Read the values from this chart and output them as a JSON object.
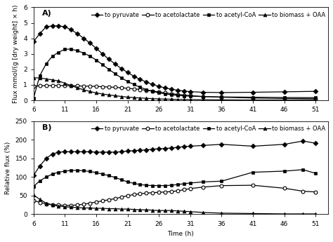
{
  "time_A": [
    6,
    7,
    8,
    9,
    10,
    11,
    12,
    13,
    14,
    15,
    16,
    17,
    18,
    19,
    20,
    21,
    22,
    23,
    24,
    25,
    26,
    27,
    28,
    29,
    30,
    31,
    33,
    36,
    41,
    46,
    51
  ],
  "pyruvate_A": [
    3.8,
    4.3,
    4.75,
    4.8,
    4.8,
    4.75,
    4.55,
    4.3,
    4.0,
    3.7,
    3.35,
    3.0,
    2.65,
    2.35,
    2.05,
    1.8,
    1.55,
    1.35,
    1.18,
    1.02,
    0.9,
    0.8,
    0.72,
    0.65,
    0.6,
    0.56,
    0.52,
    0.5,
    0.52,
    0.55,
    0.58
  ],
  "acetolactate_A": [
    0.92,
    0.93,
    0.95,
    0.96,
    0.96,
    0.95,
    0.94,
    0.93,
    0.92,
    0.91,
    0.9,
    0.88,
    0.86,
    0.84,
    0.81,
    0.78,
    0.74,
    0.7,
    0.65,
    0.6,
    0.54,
    0.48,
    0.43,
    0.38,
    0.34,
    0.3,
    0.25,
    0.2,
    0.15,
    0.12,
    0.1
  ],
  "acetylCoA_A": [
    0.15,
    1.6,
    2.35,
    2.85,
    3.1,
    3.3,
    3.3,
    3.2,
    3.05,
    2.85,
    2.6,
    2.3,
    2.0,
    1.72,
    1.45,
    1.22,
    1.02,
    0.84,
    0.7,
    0.58,
    0.48,
    0.41,
    0.36,
    0.32,
    0.29,
    0.27,
    0.24,
    0.22,
    0.2,
    0.18,
    0.17
  ],
  "biomassOAA_A": [
    1.45,
    1.45,
    1.38,
    1.32,
    1.25,
    1.1,
    0.95,
    0.8,
    0.68,
    0.57,
    0.48,
    0.41,
    0.35,
    0.3,
    0.25,
    0.21,
    0.18,
    0.15,
    0.13,
    0.11,
    0.09,
    0.08,
    0.07,
    0.06,
    0.05,
    0.05,
    0.04,
    0.03,
    0.02,
    0.02,
    0.02
  ],
  "time_B": [
    6,
    7,
    8,
    9,
    10,
    11,
    12,
    13,
    14,
    15,
    16,
    17,
    18,
    19,
    20,
    21,
    22,
    23,
    24,
    25,
    26,
    27,
    28,
    29,
    30,
    31,
    33,
    36,
    41,
    46,
    49,
    51
  ],
  "pyruvate_B": [
    105,
    130,
    150,
    162,
    167,
    168,
    168,
    168,
    168,
    168,
    167,
    167,
    167,
    167,
    168,
    170,
    171,
    172,
    173,
    175,
    176,
    177,
    178,
    180,
    182,
    183,
    185,
    188,
    183,
    188,
    197,
    191
  ],
  "acetolactate_B": [
    37,
    32,
    28,
    26,
    25,
    24,
    24,
    25,
    27,
    30,
    33,
    36,
    39,
    42,
    46,
    50,
    53,
    55,
    57,
    58,
    59,
    60,
    61,
    63,
    66,
    69,
    73,
    77,
    78,
    70,
    62,
    60
  ],
  "acetylCoA_B": [
    75,
    90,
    100,
    108,
    113,
    116,
    118,
    118,
    117,
    115,
    112,
    108,
    104,
    99,
    93,
    87,
    83,
    80,
    78,
    77,
    77,
    77,
    78,
    80,
    82,
    84,
    87,
    89,
    113,
    116,
    120,
    110
  ],
  "biomassOAA_B": [
    52,
    40,
    30,
    25,
    22,
    20,
    19,
    18,
    17,
    17,
    16,
    16,
    15,
    15,
    14,
    14,
    13,
    12,
    12,
    11,
    10,
    10,
    10,
    9,
    8,
    7,
    5,
    3,
    2,
    1,
    1,
    1
  ],
  "ylabel_A": "Flux mmol/(g [dry weight] × h)",
  "ylabel_B": "Relative flux (%)",
  "xlabel": "Time (h)",
  "ylim_A": [
    0,
    6
  ],
  "ylim_B": [
    0,
    250
  ],
  "yticks_A": [
    0,
    1,
    2,
    3,
    4,
    5,
    6
  ],
  "yticks_B": [
    0,
    50,
    100,
    150,
    200,
    250
  ],
  "xticks": [
    6,
    11,
    16,
    21,
    26,
    31,
    36,
    41,
    46,
    51
  ],
  "label_pyruvate": "to pyruvate",
  "label_acetolactate": "to acetolactate",
  "label_acetylCoA": "to acetyl-CoA",
  "label_biomassOAA": "to biomass + OAA",
  "label_A": "A)",
  "label_B": "B)",
  "marker_pyruvate": "D",
  "marker_acetolactate": "o",
  "marker_acetylCoA": "s",
  "marker_biomassOAA": "^",
  "color": "black",
  "markersize": 3.5,
  "linewidth": 0.9,
  "fontsize_label": 6.5,
  "fontsize_tick": 6.5,
  "fontsize_legend": 6.0,
  "fontsize_panel": 8.0
}
